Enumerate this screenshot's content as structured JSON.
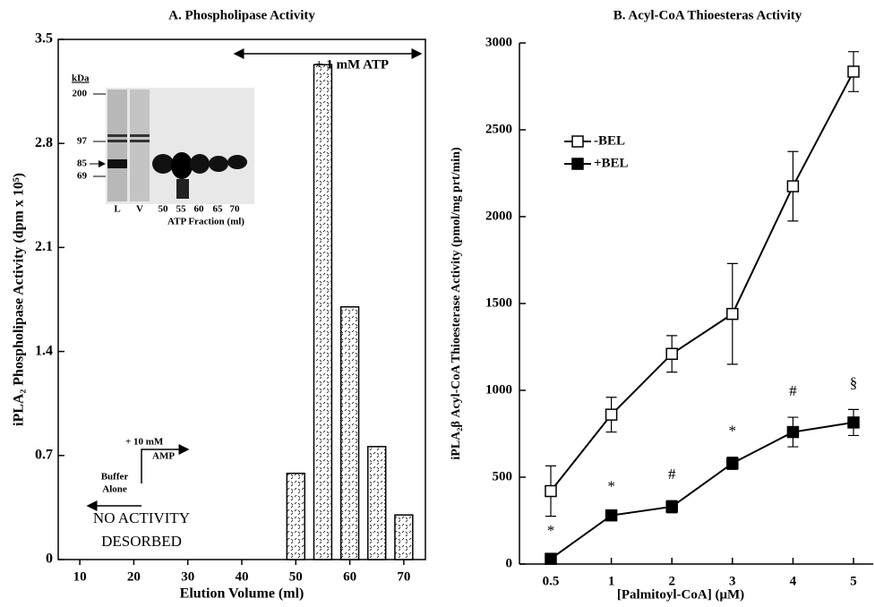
{
  "chart_data": [
    {
      "type": "bar",
      "title": "A.  Phospholipase Activity",
      "x": [
        50,
        55,
        60,
        65,
        70
      ],
      "values": [
        0.58,
        3.33,
        1.7,
        0.76,
        0.3
      ],
      "xlim": [
        6,
        74
      ],
      "xticks": [
        10,
        20,
        30,
        40,
        50,
        60,
        70
      ],
      "ylim": [
        0,
        3.5
      ],
      "yticks": [
        0,
        0.7,
        1.4,
        2.1,
        2.8,
        3.5
      ],
      "xlabel": "Elution Volume (ml)",
      "ylabel": "iPLA₂ Phospholipase Activity (dpm x 10⁵)",
      "annotations": [
        "+ 1 mM ATP",
        "+ 10 mM",
        "AMP",
        "Buffer",
        "Alone",
        "NO ACTIVITY",
        "DESORBED"
      ],
      "inset": {
        "unit": "kDa",
        "markers": [
          "200",
          "97",
          "85",
          "69"
        ],
        "lanes": [
          "L",
          "V",
          "50",
          "55",
          "60",
          "65",
          "70"
        ],
        "xlabel": "ATP Fraction (ml)"
      }
    },
    {
      "type": "line",
      "title": "B.  Acyl-CoA Thioesteras Activity",
      "categories": [
        "0.5",
        "1",
        "2",
        "3",
        "4",
        "5"
      ],
      "series": [
        {
          "name": "-BEL",
          "color": "#000000",
          "marker": "open",
          "values": [
            420,
            860,
            1210,
            1440,
            2175,
            2835
          ],
          "errors": [
            145,
            100,
            105,
            290,
            200,
            115
          ]
        },
        {
          "name": "+BEL",
          "color": "#000000",
          "marker": "filled",
          "values": [
            30,
            280,
            330,
            580,
            760,
            815
          ],
          "errors": [
            10,
            15,
            35,
            35,
            85,
            75
          ]
        }
      ],
      "significance": [
        "*",
        "*",
        "#",
        "*",
        "#",
        "§"
      ],
      "ylim": [
        0,
        3000
      ],
      "yticks": [
        0,
        500,
        1000,
        1500,
        2000,
        2500,
        3000
      ],
      "xlabel": "[Palmitoyl-CoA] (μM)",
      "ylabel": "iPLA₂β Acyl-CoA Thioesterase Activity (pmol/mg prt/min)",
      "legend": "upper left"
    }
  ]
}
